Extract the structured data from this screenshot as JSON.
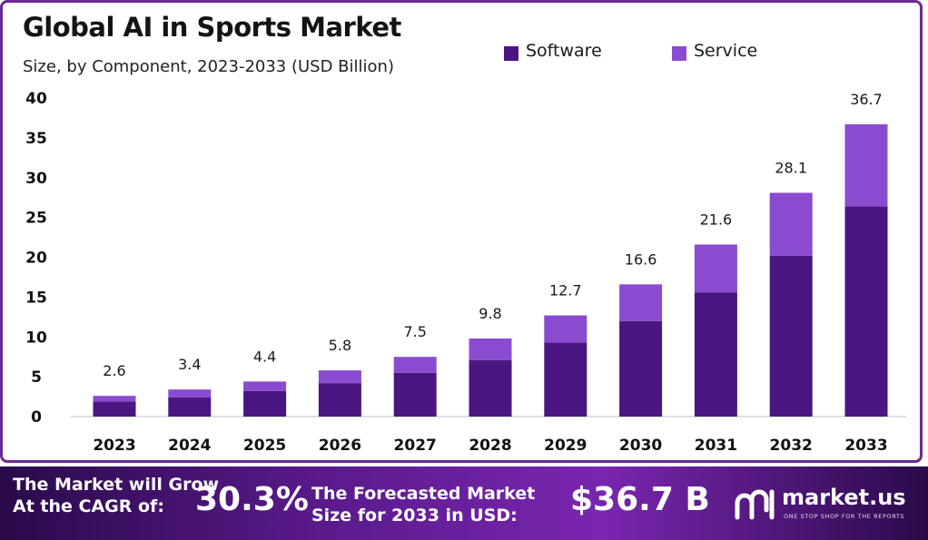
{
  "chart_data": {
    "type": "bar",
    "stacked": true,
    "title": "Global AI in Sports Market",
    "subtitle": "Size, by Component, 2023-2033 (USD Billion)",
    "categories": [
      "2023",
      "2024",
      "2025",
      "2026",
      "2027",
      "2028",
      "2029",
      "2030",
      "2031",
      "2032",
      "2033"
    ],
    "series": [
      {
        "name": "Software",
        "color": "#4a1682",
        "values": [
          1.9,
          2.4,
          3.2,
          4.2,
          5.5,
          7.1,
          9.3,
          12.0,
          15.6,
          20.2,
          26.4
        ]
      },
      {
        "name": "Service",
        "color": "#8a4bd0",
        "values": [
          0.7,
          1.0,
          1.2,
          1.6,
          2.0,
          2.7,
          3.4,
          4.6,
          6.0,
          7.9,
          10.3
        ]
      }
    ],
    "totals": [
      "2.6",
      "3.4",
      "4.4",
      "5.8",
      "7.5",
      "9.8",
      "12.7",
      "16.6",
      "21.6",
      "28.1",
      "36.7"
    ],
    "y_ticks": [
      "0",
      "5",
      "10",
      "15",
      "20",
      "25",
      "30",
      "35",
      "40"
    ],
    "ylim": [
      0,
      40
    ],
    "grid": false,
    "legend_position": "top-right"
  },
  "footer": {
    "cagr_text": "The Market will Grow At the CAGR of:",
    "cagr_value": "30.3%",
    "forecast_text": "The Forecasted Market Size for 2033 in USD:",
    "forecast_value": "$36.7 B",
    "brand_name": "market.us",
    "brand_tagline": "ONE STOP SHOP FOR THE REPORTS",
    "brand_icon": "market-us-logo-icon"
  }
}
